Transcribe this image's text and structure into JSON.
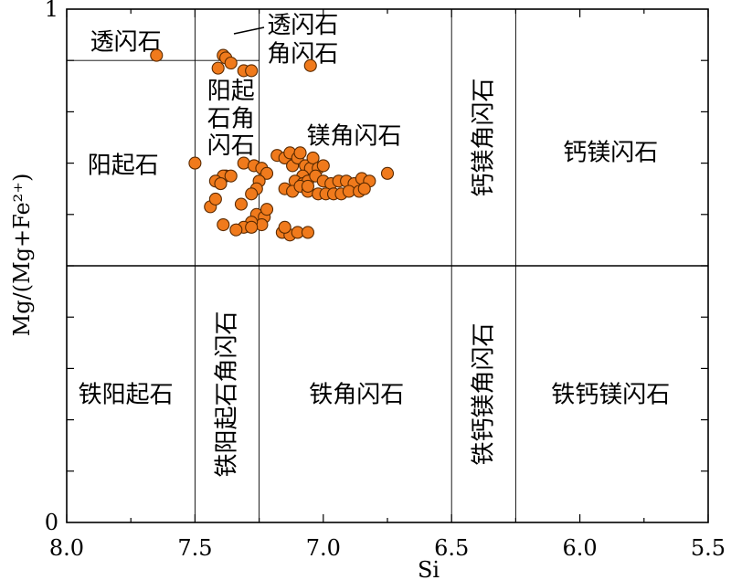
{
  "chart_data": {
    "type": "scatter",
    "xlabel": "Si",
    "ylabel": "Mg/(Mg+Fe²⁺)",
    "xlim": [
      8.0,
      5.5
    ],
    "ylim": [
      0,
      1
    ],
    "x_tick_labels": [
      "8.0",
      "7.5",
      "7.0",
      "6.5",
      "6.0",
      "5.5"
    ],
    "x_tick_values": [
      8.0,
      7.5,
      7.0,
      6.5,
      6.0,
      5.5
    ],
    "y_tick_labels": [
      "0",
      "1"
    ],
    "y_tick_values": [
      0,
      1
    ],
    "boundaries": {
      "vertical_x": [
        7.5,
        7.25,
        6.5,
        6.25
      ],
      "horizontal_y": 0.5,
      "tremolite_y": 0.9
    },
    "zones": [
      {
        "label": "透闪石",
        "x": 7.77,
        "y": 0.935,
        "orient": "h"
      },
      {
        "label": "透闪石",
        "x": 7.08,
        "y": 0.968,
        "orient": "h"
      },
      {
        "label": "角闪石",
        "x": 7.08,
        "y": 0.912,
        "orient": "h"
      },
      {
        "label": "阳起",
        "x": 7.36,
        "y": 0.84,
        "orient": "h"
      },
      {
        "label": "石角",
        "x": 7.36,
        "y": 0.786,
        "orient": "h"
      },
      {
        "label": "闪石",
        "x": 7.36,
        "y": 0.733,
        "orient": "h"
      },
      {
        "label": "镁角闪石",
        "x": 6.88,
        "y": 0.752,
        "orient": "h"
      },
      {
        "label": "阳起石",
        "x": 7.78,
        "y": 0.695,
        "orient": "h"
      },
      {
        "label": "钙镁角闪石",
        "x": 6.375,
        "y": 0.75,
        "orient": "v"
      },
      {
        "label": "钙镁闪石",
        "x": 5.88,
        "y": 0.72,
        "orient": "h"
      },
      {
        "label": "铁阳起石",
        "x": 7.77,
        "y": 0.248,
        "orient": "h"
      },
      {
        "label": "铁阳起石角闪石",
        "x": 7.375,
        "y": 0.25,
        "orient": "v"
      },
      {
        "label": "铁角闪石",
        "x": 6.87,
        "y": 0.248,
        "orient": "h"
      },
      {
        "label": "铁钙镁角闪石",
        "x": 6.375,
        "y": 0.25,
        "orient": "v"
      },
      {
        "label": "铁钙镁闪石",
        "x": 5.88,
        "y": 0.248,
        "orient": "h"
      }
    ],
    "points": [
      [
        7.65,
        0.91
      ],
      [
        7.39,
        0.91
      ],
      [
        7.38,
        0.905
      ],
      [
        7.36,
        0.895
      ],
      [
        7.41,
        0.885
      ],
      [
        7.31,
        0.88
      ],
      [
        7.28,
        0.88
      ],
      [
        7.05,
        0.89
      ],
      [
        7.5,
        0.7
      ],
      [
        7.31,
        0.7
      ],
      [
        7.38,
        0.675
      ],
      [
        7.39,
        0.675
      ],
      [
        7.36,
        0.675
      ],
      [
        7.42,
        0.665
      ],
      [
        7.4,
        0.66
      ],
      [
        7.27,
        0.695
      ],
      [
        7.24,
        0.69
      ],
      [
        7.22,
        0.68
      ],
      [
        7.25,
        0.665
      ],
      [
        7.26,
        0.65
      ],
      [
        7.28,
        0.64
      ],
      [
        7.18,
        0.715
      ],
      [
        7.15,
        0.71
      ],
      [
        7.13,
        0.72
      ],
      [
        7.12,
        0.695
      ],
      [
        7.1,
        0.71
      ],
      [
        7.09,
        0.72
      ],
      [
        7.07,
        0.695
      ],
      [
        7.05,
        0.69
      ],
      [
        7.08,
        0.675
      ],
      [
        7.04,
        0.71
      ],
      [
        7.02,
        0.69
      ],
      [
        7.0,
        0.695
      ],
      [
        7.11,
        0.665
      ],
      [
        7.08,
        0.66
      ],
      [
        7.06,
        0.665
      ],
      [
        7.03,
        0.675
      ],
      [
        7.0,
        0.665
      ],
      [
        6.97,
        0.66
      ],
      [
        6.94,
        0.665
      ],
      [
        6.91,
        0.665
      ],
      [
        6.88,
        0.66
      ],
      [
        6.85,
        0.67
      ],
      [
        6.82,
        0.665
      ],
      [
        6.75,
        0.68
      ],
      [
        7.15,
        0.65
      ],
      [
        7.12,
        0.645
      ],
      [
        7.09,
        0.655
      ],
      [
        7.06,
        0.645
      ],
      [
        7.02,
        0.64
      ],
      [
        6.99,
        0.64
      ],
      [
        6.96,
        0.64
      ],
      [
        6.93,
        0.64
      ],
      [
        6.9,
        0.645
      ],
      [
        6.86,
        0.645
      ],
      [
        6.84,
        0.65
      ],
      [
        7.06,
        0.655
      ],
      [
        7.44,
        0.615
      ],
      [
        7.32,
        0.62
      ],
      [
        7.42,
        0.63
      ],
      [
        7.26,
        0.6
      ],
      [
        7.23,
        0.595
      ],
      [
        7.22,
        0.61
      ],
      [
        7.24,
        0.58
      ],
      [
        7.28,
        0.585
      ],
      [
        7.31,
        0.575
      ],
      [
        7.34,
        0.57
      ],
      [
        7.39,
        0.58
      ],
      [
        7.28,
        0.575
      ],
      [
        7.16,
        0.565
      ],
      [
        7.13,
        0.56
      ],
      [
        7.1,
        0.565
      ],
      [
        7.06,
        0.565
      ],
      [
        7.15,
        0.575
      ]
    ]
  }
}
